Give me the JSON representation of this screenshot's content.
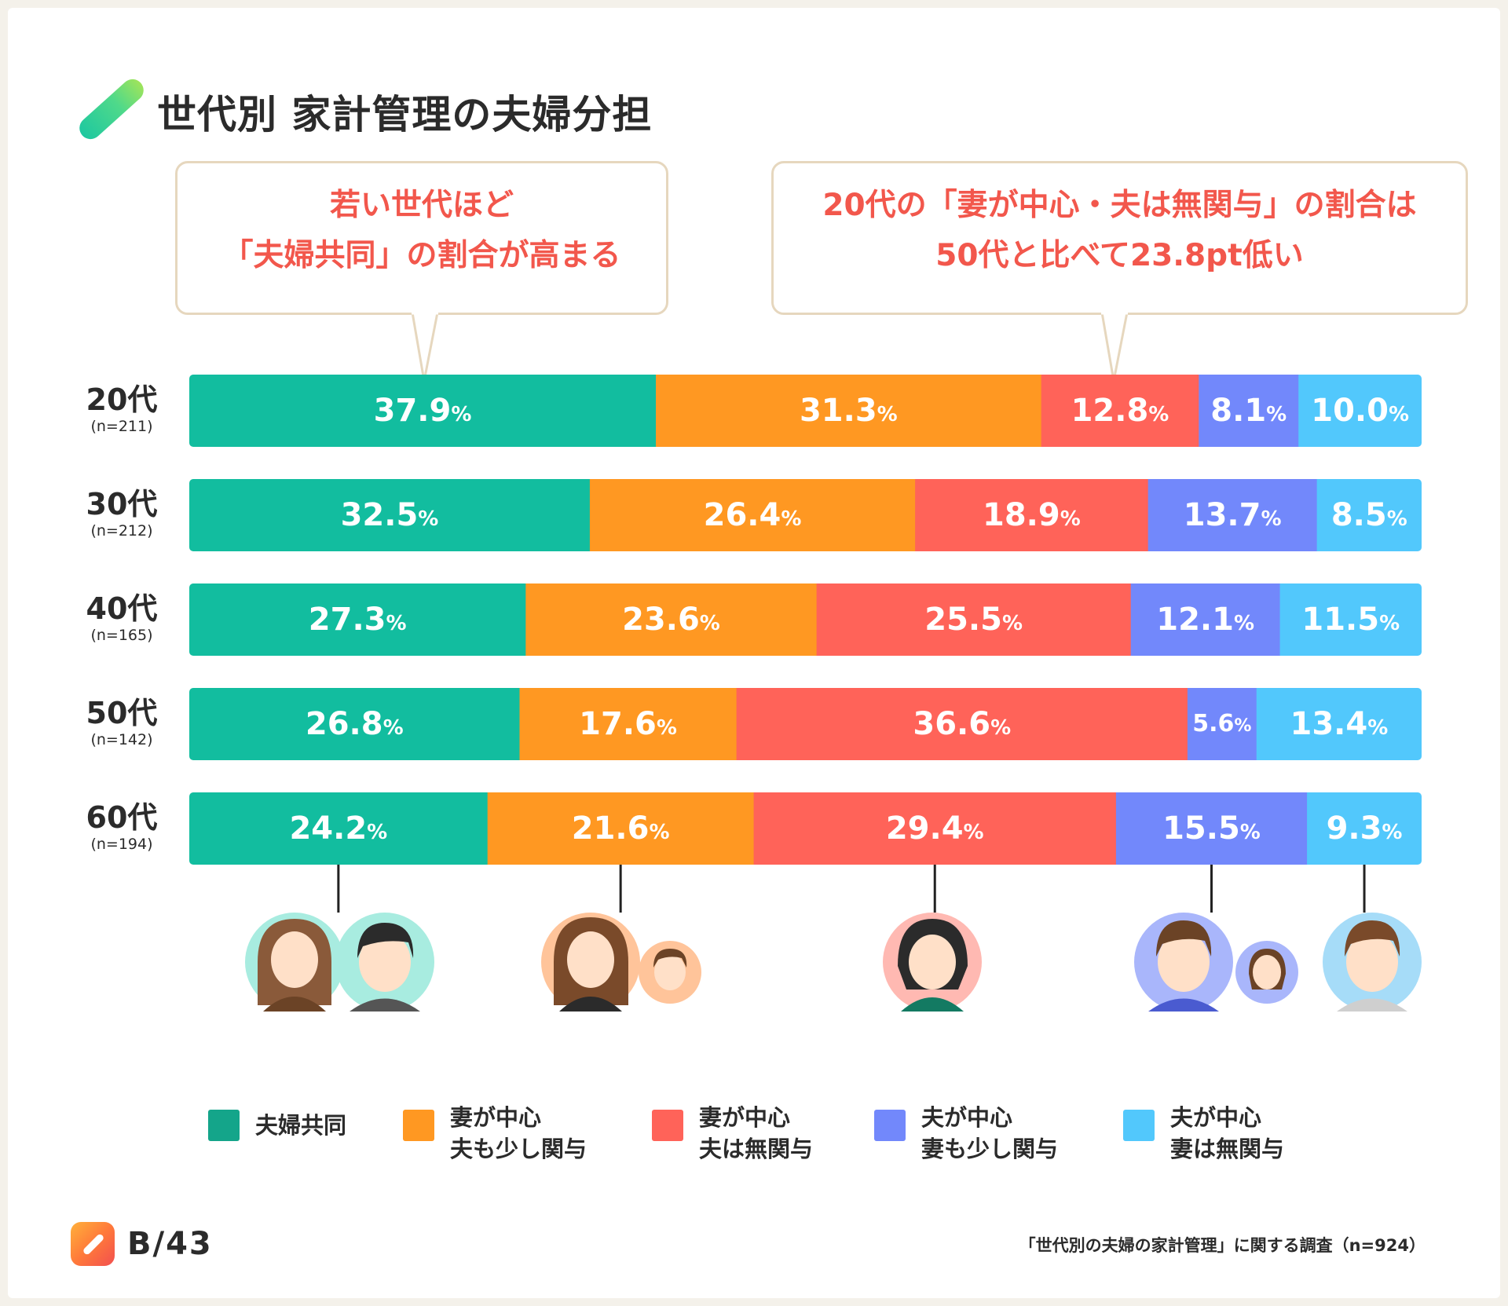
{
  "title": "世代別 家計管理の夫婦分担",
  "callouts": {
    "left": {
      "line1": "若い世代ほど",
      "line2": "「夫婦共同」の割合が高まる"
    },
    "right": {
      "line1": "20代の「妻が中心・夫は無関与」の割合は",
      "line2": "50代と比べて23.8pt低い"
    }
  },
  "colors": {
    "kyodo": "#12bd9f",
    "tsuma_sukoshi": "#ff9822",
    "tsuma_mukanyo": "#ff6359",
    "otto_sukoshi": "#7288fb",
    "otto_mukanyo": "#52c8fc",
    "legend_kyodo": "#14a58a"
  },
  "chart_data": {
    "type": "bar",
    "orientation": "horizontal",
    "stacked": true,
    "unit": "%",
    "categories": [
      "20代",
      "30代",
      "40代",
      "50代",
      "60代"
    ],
    "sample_sizes": [
      "(n=211)",
      "(n=212)",
      "(n=165)",
      "(n=142)",
      "(n=194)"
    ],
    "series": [
      {
        "name": "夫婦共同",
        "key": "kyodo",
        "values": [
          37.9,
          32.5,
          27.3,
          26.8,
          24.2
        ]
      },
      {
        "name": "妻が中心 夫も少し関与",
        "key": "tsuma_sukoshi",
        "values": [
          31.3,
          26.4,
          23.6,
          17.6,
          21.6
        ]
      },
      {
        "name": "妻が中心 夫は無関与",
        "key": "tsuma_mukanyo",
        "values": [
          12.8,
          18.9,
          25.5,
          36.6,
          29.4
        ]
      },
      {
        "name": "夫が中心 妻も少し関与",
        "key": "otto_sukoshi",
        "values": [
          8.1,
          13.7,
          12.1,
          5.6,
          15.5
        ]
      },
      {
        "name": "夫が中心 妻は無関与",
        "key": "otto_mukanyo",
        "values": [
          10.0,
          8.5,
          11.5,
          13.4,
          9.3
        ]
      }
    ],
    "xlim": [
      0,
      100
    ]
  },
  "legend": [
    {
      "key": "kyodo",
      "line1": "夫婦共同",
      "line2": ""
    },
    {
      "key": "tsuma_sukoshi",
      "line1": "妻が中心",
      "line2": "夫も少し関与"
    },
    {
      "key": "tsuma_mukanyo",
      "line1": "妻が中心",
      "line2": "夫は無関与"
    },
    {
      "key": "otto_sukoshi",
      "line1": "夫が中心",
      "line2": "妻も少し関与"
    },
    {
      "key": "otto_mukanyo",
      "line1": "夫が中心",
      "line2": "妻は無関与"
    }
  ],
  "footer": {
    "logo": "B/43",
    "source": "「世代別の夫婦の家計管理」に関する調査（n=924）"
  }
}
